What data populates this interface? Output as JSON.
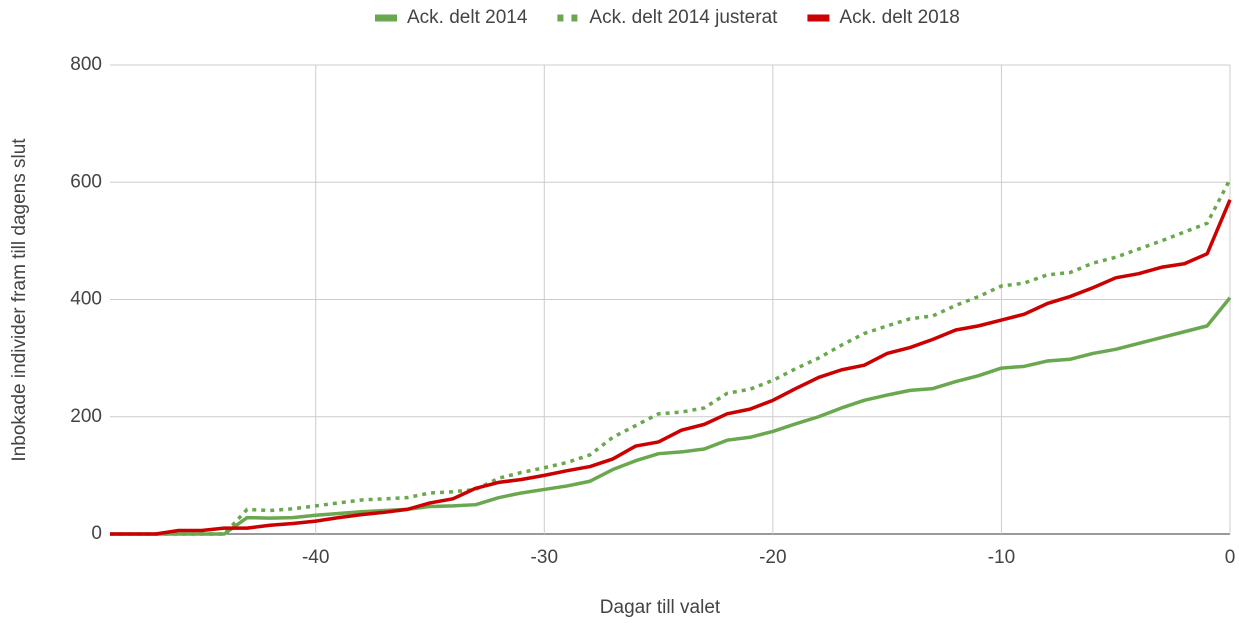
{
  "chart_data": {
    "type": "line",
    "x_label": "Dagar till valet",
    "y_label": "Inbokade individer fram till dagens slut",
    "x": [
      -49,
      -48,
      -47,
      -46,
      -45,
      -44,
      -43,
      -42,
      -41,
      -40,
      -39,
      -38,
      -37,
      -36,
      -35,
      -34,
      -33,
      -32,
      -31,
      -30,
      -29,
      -28,
      -27,
      -26,
      -25,
      -24,
      -23,
      -22,
      -21,
      -20,
      -19,
      -18,
      -17,
      -16,
      -15,
      -14,
      -13,
      -12,
      -11,
      -10,
      -9,
      -8,
      -7,
      -6,
      -5,
      -4,
      -3,
      -2,
      -1,
      0
    ],
    "series": [
      {
        "name": "Ack. delt 2014",
        "color": "#6aa84f",
        "dash": false,
        "values": [
          0,
          0,
          0,
          0,
          0,
          0,
          28,
          27,
          28,
          32,
          35,
          38,
          40,
          42,
          47,
          48,
          50,
          62,
          70,
          76,
          82,
          90,
          110,
          125,
          137,
          140,
          145,
          160,
          165,
          175,
          188,
          200,
          215,
          228,
          237,
          245,
          248,
          260,
          270,
          283,
          286,
          295,
          298,
          308,
          315,
          325,
          335,
          345,
          355,
          403
        ]
      },
      {
        "name": "Ack. delt 2014 justerat",
        "color": "#6aa84f",
        "dash": true,
        "values": [
          0,
          0,
          0,
          0,
          0,
          0,
          42,
          40,
          43,
          48,
          53,
          58,
          60,
          62,
          70,
          72,
          76,
          95,
          105,
          113,
          122,
          135,
          165,
          185,
          205,
          208,
          215,
          240,
          247,
          262,
          282,
          300,
          322,
          342,
          355,
          367,
          372,
          390,
          405,
          423,
          428,
          442,
          446,
          462,
          472,
          486,
          500,
          515,
          530,
          605
        ]
      },
      {
        "name": "Ack. delt 2018",
        "color": "#cc0000",
        "dash": false,
        "values": [
          0,
          0,
          0,
          6,
          6,
          10,
          10,
          15,
          18,
          22,
          28,
          33,
          37,
          42,
          53,
          60,
          78,
          88,
          93,
          100,
          108,
          115,
          128,
          150,
          157,
          177,
          187,
          205,
          213,
          228,
          248,
          267,
          280,
          288,
          308,
          318,
          332,
          348,
          355,
          365,
          375,
          393,
          405,
          420,
          437,
          444,
          455,
          461,
          478,
          570
        ]
      }
    ],
    "xlim": [
      -49,
      0
    ],
    "xticks": [
      -40,
      -30,
      -20,
      -10,
      0
    ],
    "ylim": [
      0,
      800
    ],
    "yticks": [
      0,
      200,
      400,
      600,
      800
    ],
    "grid": true,
    "legend": "top"
  }
}
